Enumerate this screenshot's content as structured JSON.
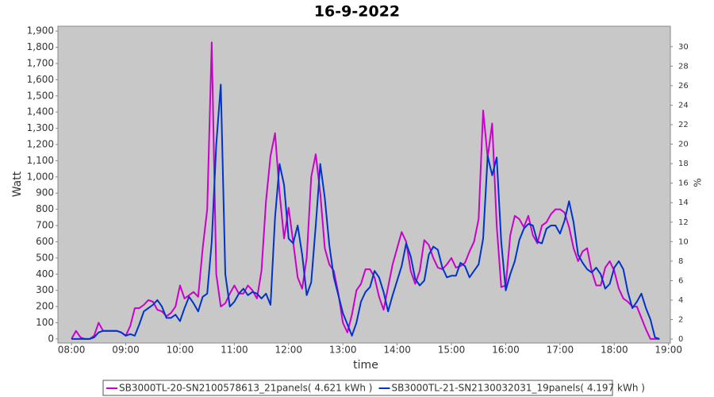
{
  "chart_data": {
    "type": "line",
    "title": "16-9-2022",
    "xlabel": "time",
    "ylabel": "Watt",
    "y2label": "%",
    "x": [
      "08:00",
      "08:05",
      "08:10",
      "08:15",
      "08:20",
      "08:25",
      "08:30",
      "08:35",
      "08:40",
      "08:45",
      "08:50",
      "08:55",
      "09:00",
      "09:05",
      "09:10",
      "09:15",
      "09:20",
      "09:25",
      "09:30",
      "09:35",
      "09:40",
      "09:45",
      "09:50",
      "09:55",
      "10:00",
      "10:05",
      "10:10",
      "10:15",
      "10:20",
      "10:25",
      "10:30",
      "10:35",
      "10:40",
      "10:45",
      "10:50",
      "10:55",
      "11:00",
      "11:05",
      "11:10",
      "11:15",
      "11:20",
      "11:25",
      "11:30",
      "11:35",
      "11:40",
      "11:45",
      "11:50",
      "11:55",
      "12:00",
      "12:05",
      "12:10",
      "12:15",
      "12:20",
      "12:25",
      "12:30",
      "12:35",
      "12:40",
      "12:45",
      "12:50",
      "12:55",
      "13:00",
      "13:05",
      "13:10",
      "13:15",
      "13:20",
      "13:25",
      "13:30",
      "13:35",
      "13:40",
      "13:45",
      "13:50",
      "13:55",
      "14:00",
      "14:05",
      "14:10",
      "14:15",
      "14:20",
      "14:25",
      "14:30",
      "14:35",
      "14:40",
      "14:45",
      "14:50",
      "14:55",
      "15:00",
      "15:05",
      "15:10",
      "15:15",
      "15:20",
      "15:25",
      "15:30",
      "15:35",
      "15:40",
      "15:45",
      "15:50",
      "15:55",
      "16:00",
      "16:05",
      "16:10",
      "16:15",
      "16:20",
      "16:25",
      "16:30",
      "16:35",
      "16:40",
      "16:45",
      "16:50",
      "16:55",
      "17:00",
      "17:05",
      "17:10",
      "17:15",
      "17:20",
      "17:25",
      "17:30",
      "17:35",
      "17:40",
      "17:45",
      "17:50",
      "17:55",
      "18:00",
      "18:05",
      "18:10",
      "18:15",
      "18:20",
      "18:25",
      "18:30",
      "18:35",
      "18:40",
      "18:45",
      "18:50"
    ],
    "series": [
      {
        "name": "SB3000TL-20-SN2100578613_21panels( 4.621 kWh )",
        "color": "#cc00cc",
        "values": [
          0,
          50,
          10,
          0,
          0,
          20,
          100,
          50,
          50,
          50,
          50,
          40,
          20,
          80,
          190,
          190,
          210,
          240,
          230,
          180,
          170,
          140,
          160,
          200,
          330,
          250,
          270,
          290,
          260,
          560,
          800,
          1830,
          400,
          200,
          220,
          280,
          330,
          280,
          280,
          330,
          300,
          250,
          420,
          850,
          1130,
          1270,
          900,
          620,
          810,
          600,
          380,
          310,
          500,
          1000,
          1140,
          900,
          560,
          460,
          420,
          280,
          100,
          40,
          150,
          300,
          340,
          430,
          430,
          380,
          260,
          180,
          320,
          460,
          560,
          660,
          600,
          420,
          340,
          420,
          610,
          580,
          500,
          440,
          430,
          460,
          500,
          440,
          450,
          470,
          540,
          600,
          740,
          1410,
          1120,
          1330,
          700,
          320,
          330,
          640,
          760,
          740,
          690,
          760,
          640,
          590,
          700,
          720,
          770,
          800,
          800,
          780,
          690,
          560,
          480,
          540,
          560,
          420,
          330,
          330,
          440,
          480,
          420,
          310,
          250,
          230,
          200,
          200,
          130,
          60,
          0,
          0,
          0
        ]
      },
      {
        "name": "SB3000TL-21-SN2130032031_19panels( 4.197 kWh )",
        "color": "#0033cc",
        "values": [
          0,
          0,
          0,
          0,
          0,
          10,
          40,
          50,
          50,
          50,
          50,
          40,
          20,
          30,
          20,
          90,
          170,
          190,
          210,
          240,
          200,
          130,
          130,
          150,
          110,
          190,
          260,
          220,
          170,
          260,
          280,
          600,
          1200,
          1570,
          400,
          200,
          230,
          280,
          310,
          270,
          290,
          280,
          250,
          280,
          210,
          750,
          1080,
          950,
          620,
          590,
          700,
          520,
          270,
          350,
          700,
          1080,
          870,
          580,
          380,
          270,
          160,
          90,
          20,
          100,
          230,
          290,
          320,
          420,
          380,
          290,
          170,
          270,
          360,
          450,
          590,
          510,
          370,
          330,
          360,
          520,
          570,
          550,
          440,
          380,
          390,
          390,
          470,
          450,
          380,
          420,
          460,
          620,
          1130,
          1010,
          1120,
          600,
          300,
          400,
          480,
          610,
          680,
          710,
          700,
          600,
          590,
          680,
          700,
          700,
          650,
          730,
          850,
          720,
          520,
          470,
          430,
          410,
          440,
          400,
          310,
          340,
          440,
          480,
          430,
          290,
          190,
          230,
          280,
          190,
          120,
          10,
          0
        ]
      }
    ],
    "xlim": [
      "07:45",
      "19:02"
    ],
    "xticks": [
      "08:00",
      "09:00",
      "10:00",
      "11:00",
      "12:00",
      "13:00",
      "14:00",
      "15:00",
      "16:00",
      "17:00",
      "18:00",
      "19:00"
    ],
    "ylim": [
      -25,
      1930
    ],
    "yticks": [
      0,
      100,
      200,
      300,
      400,
      500,
      600,
      700,
      800,
      900,
      {
        "value": 1000,
        "label": "1,000"
      },
      {
        "value": 1100,
        "label": "1,100"
      },
      {
        "value": 1200,
        "label": "1,200"
      },
      {
        "value": 1300,
        "label": "1,300"
      },
      {
        "value": 1400,
        "label": "1,400"
      },
      {
        "value": 1500,
        "label": "1,500"
      },
      {
        "value": 1600,
        "label": "1,600"
      },
      {
        "value": 1700,
        "label": "1,700"
      },
      {
        "value": 1800,
        "label": "1,800"
      },
      {
        "value": 1900,
        "label": "1,900"
      }
    ],
    "y2lim": [
      -0.4,
      32.1
    ],
    "y2ticks": [
      0,
      2,
      4,
      6,
      8,
      10,
      12,
      14,
      16,
      18,
      20,
      22,
      24,
      26,
      28,
      30
    ],
    "grid": false
  }
}
